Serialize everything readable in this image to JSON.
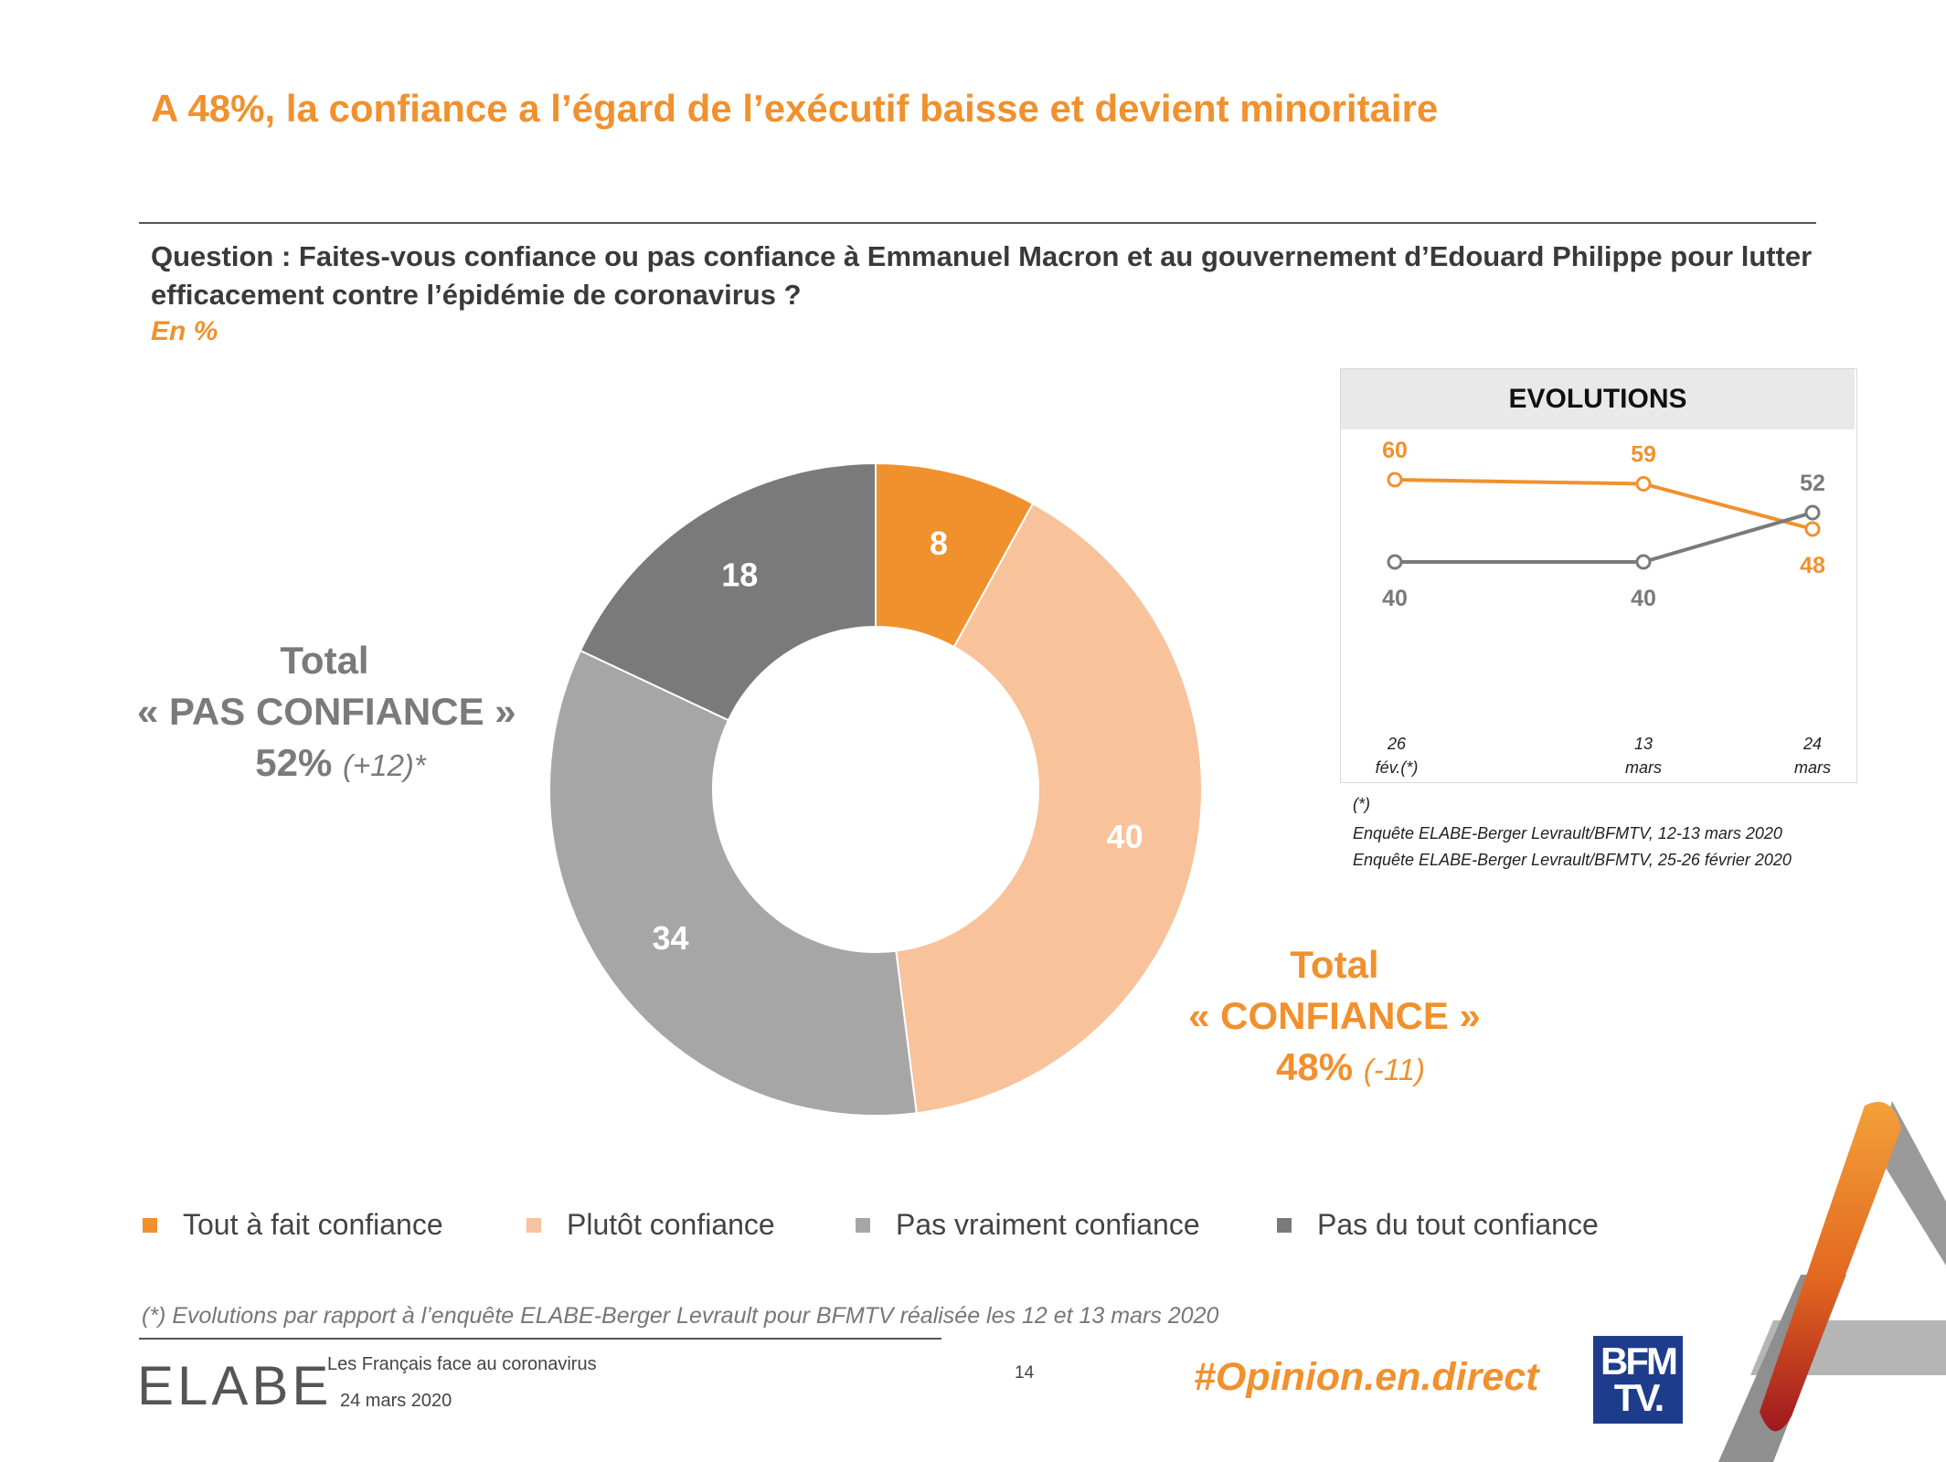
{
  "title": "A 48%, la confiance a l’égard de l’exécutif baisse et devient minoritaire",
  "question": "Question : Faites-vous confiance ou pas confiance à Emmanuel Macron et au gouvernement d’Edouard Philippe pour lutter efficacement contre l’épidémie de coronavirus ?",
  "unit": "En %",
  "totals": {
    "pas_confiance": {
      "line1": "Total",
      "line2": "« PAS CONFIANCE »",
      "value": "52%",
      "change": "(+12)*"
    },
    "confiance": {
      "line1": "Total",
      "line2": "« CONFIANCE »",
      "value": "48%",
      "change": "(-11)"
    }
  },
  "evolutions": {
    "heading": "EVOLUTIONS",
    "x_labels": [
      [
        "26",
        "fév.(*)"
      ],
      [
        "13",
        "mars"
      ],
      [
        "24",
        "mars"
      ]
    ],
    "footnote_marker": "(*)",
    "sources": [
      "Enquête ELABE-Berger Levrault/BFMTV, 12-13 mars 2020",
      "Enquête ELABE-Berger Levrault/BFMTV, 25-26 février 2020"
    ]
  },
  "legend": [
    {
      "label": "Tout à fait confiance",
      "color": "#f0912e"
    },
    {
      "label": "Plutôt confiance",
      "color": "#f8c29a"
    },
    {
      "label": "Pas vraiment confiance",
      "color": "#a6a6a6"
    },
    {
      "label": "Pas du tout confiance",
      "color": "#7a7a7a"
    }
  ],
  "note": "(*) Evolutions par rapport à l’enquête ELABE-Berger Levrault pour BFMTV réalisée les 12 et 13 mars 2020",
  "footer": {
    "logo": "ELABE",
    "survey": "Les Français face au coronavirus",
    "date": "24 mars 2020",
    "page": "14",
    "hashtag": "#Opinion.en.direct",
    "bfm_line1": "BFM",
    "bfm_line2": "TV."
  },
  "chart_data": [
    {
      "type": "pie",
      "title": "",
      "categories": [
        "Tout à fait confiance",
        "Plutôt confiance",
        "Pas vraiment confiance",
        "Pas du tout confiance"
      ],
      "values": [
        8,
        40,
        34,
        18
      ],
      "colors": [
        "#f0912e",
        "#f8c29a",
        "#a6a6a6",
        "#7a7a7a"
      ],
      "donut": true
    },
    {
      "type": "line",
      "title": "EVOLUTIONS",
      "x": [
        "26 fév.(*)",
        "13 mars",
        "24 mars"
      ],
      "series": [
        {
          "values": [
            60,
            59,
            48
          ],
          "color": "#f0912e"
        },
        {
          "values": [
            40,
            40,
            52
          ],
          "color": "#7a7a7a"
        }
      ],
      "ylim": [
        30,
        70
      ]
    }
  ]
}
